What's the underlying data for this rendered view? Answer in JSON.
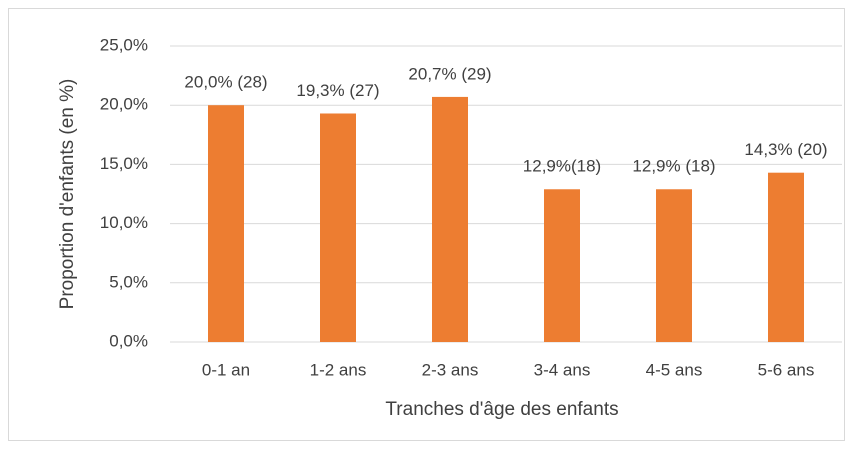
{
  "chart_data": {
    "type": "bar",
    "categories": [
      "0-1 an",
      "1-2 ans",
      "2-3 ans",
      "3-4 ans",
      "4-5 ans",
      "5-6 ans"
    ],
    "values": [
      20.0,
      19.3,
      20.7,
      12.9,
      12.9,
      14.3
    ],
    "value_labels": [
      "20,0% (28)",
      "19,3% (27)",
      "20,7% (29)",
      "12,9%(18)",
      "12,9% (18)",
      "14,3% (20)"
    ],
    "color": "#ed7d31",
    "ylim": [
      0,
      25
    ],
    "yticks": [
      {
        "value": 0,
        "label": "0,0%"
      },
      {
        "value": 5,
        "label": "5,0%"
      },
      {
        "value": 10,
        "label": "10,0%"
      },
      {
        "value": 15,
        "label": "15,0%"
      },
      {
        "value": 20,
        "label": "20,0%"
      },
      {
        "value": 25,
        "label": "25,0%"
      }
    ],
    "ylabel": "Proportion d'enfants (en %)",
    "xlabel": "Tranches d'âge des enfants",
    "grid": true
  }
}
